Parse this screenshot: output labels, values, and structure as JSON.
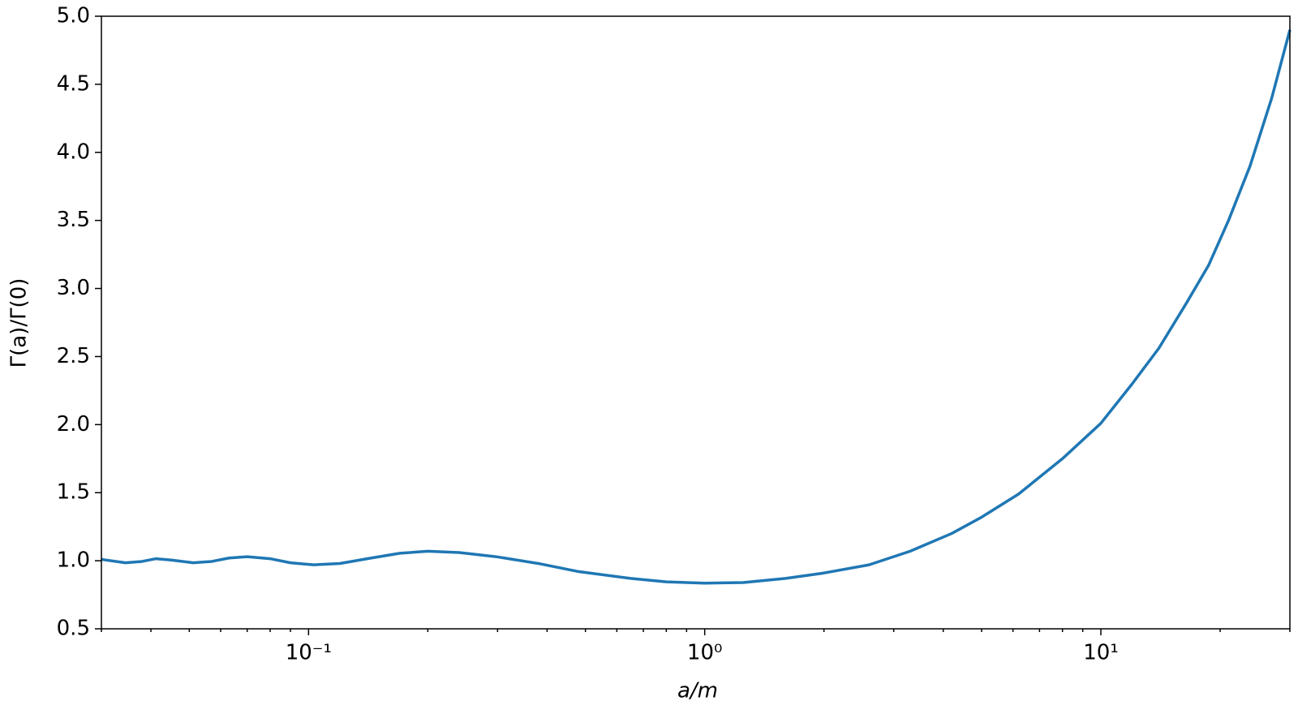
{
  "chart_data": {
    "type": "line",
    "xlabel": "a/m",
    "ylabel": "Γ(a)/Γ(0)",
    "xscale": "log",
    "xlim": [
      0.03,
      30
    ],
    "ylim": [
      0.5,
      5.0
    ],
    "xticks": [
      {
        "value": 0.1,
        "label": "10⁻¹"
      },
      {
        "value": 1,
        "label": "10⁰"
      },
      {
        "value": 10,
        "label": "10¹"
      }
    ],
    "xminorticks": [
      0.03,
      0.04,
      0.05,
      0.06,
      0.07,
      0.08,
      0.09,
      0.2,
      0.3,
      0.4,
      0.5,
      0.6,
      0.7,
      0.8,
      0.9,
      2,
      3,
      4,
      5,
      6,
      7,
      8,
      9,
      20,
      30
    ],
    "yticks": [
      0.5,
      {
        "value": 1,
        "label": "1.0"
      },
      1.5,
      {
        "value": 2,
        "label": "2.0"
      },
      2.5,
      {
        "value": 3,
        "label": "3.0"
      },
      3.5,
      {
        "value": 4,
        "label": "4.0"
      },
      4.5,
      {
        "value": 5,
        "label": "5.0"
      }
    ],
    "x": [
      0.03,
      0.0345,
      0.038,
      0.0412,
      0.045,
      0.0512,
      0.057,
      0.063,
      0.07,
      0.08,
      0.09,
      0.103,
      0.12,
      0.144,
      0.17,
      0.2,
      0.24,
      0.297,
      0.38,
      0.481,
      0.65,
      0.8,
      1.0,
      1.25,
      1.6,
      2.0,
      2.6,
      3.3,
      4.2,
      5.0,
      6.2,
      8.0,
      10,
      12,
      14,
      16.5,
      18.7,
      21,
      23.8,
      27,
      30
    ],
    "series": [
      {
        "color": "#1f77b4",
        "values": [
          1.01,
          0.985,
          0.995,
          1.015,
          1.005,
          0.985,
          0.995,
          1.02,
          1.03,
          1.015,
          0.985,
          0.97,
          0.98,
          1.02,
          1.055,
          1.07,
          1.06,
          1.03,
          0.98,
          0.92,
          0.87,
          0.845,
          0.835,
          0.84,
          0.87,
          0.91,
          0.97,
          1.07,
          1.2,
          1.32,
          1.49,
          1.75,
          2.01,
          2.3,
          2.56,
          2.9,
          3.17,
          3.5,
          3.9,
          4.4,
          4.9
        ]
      }
    ]
  }
}
